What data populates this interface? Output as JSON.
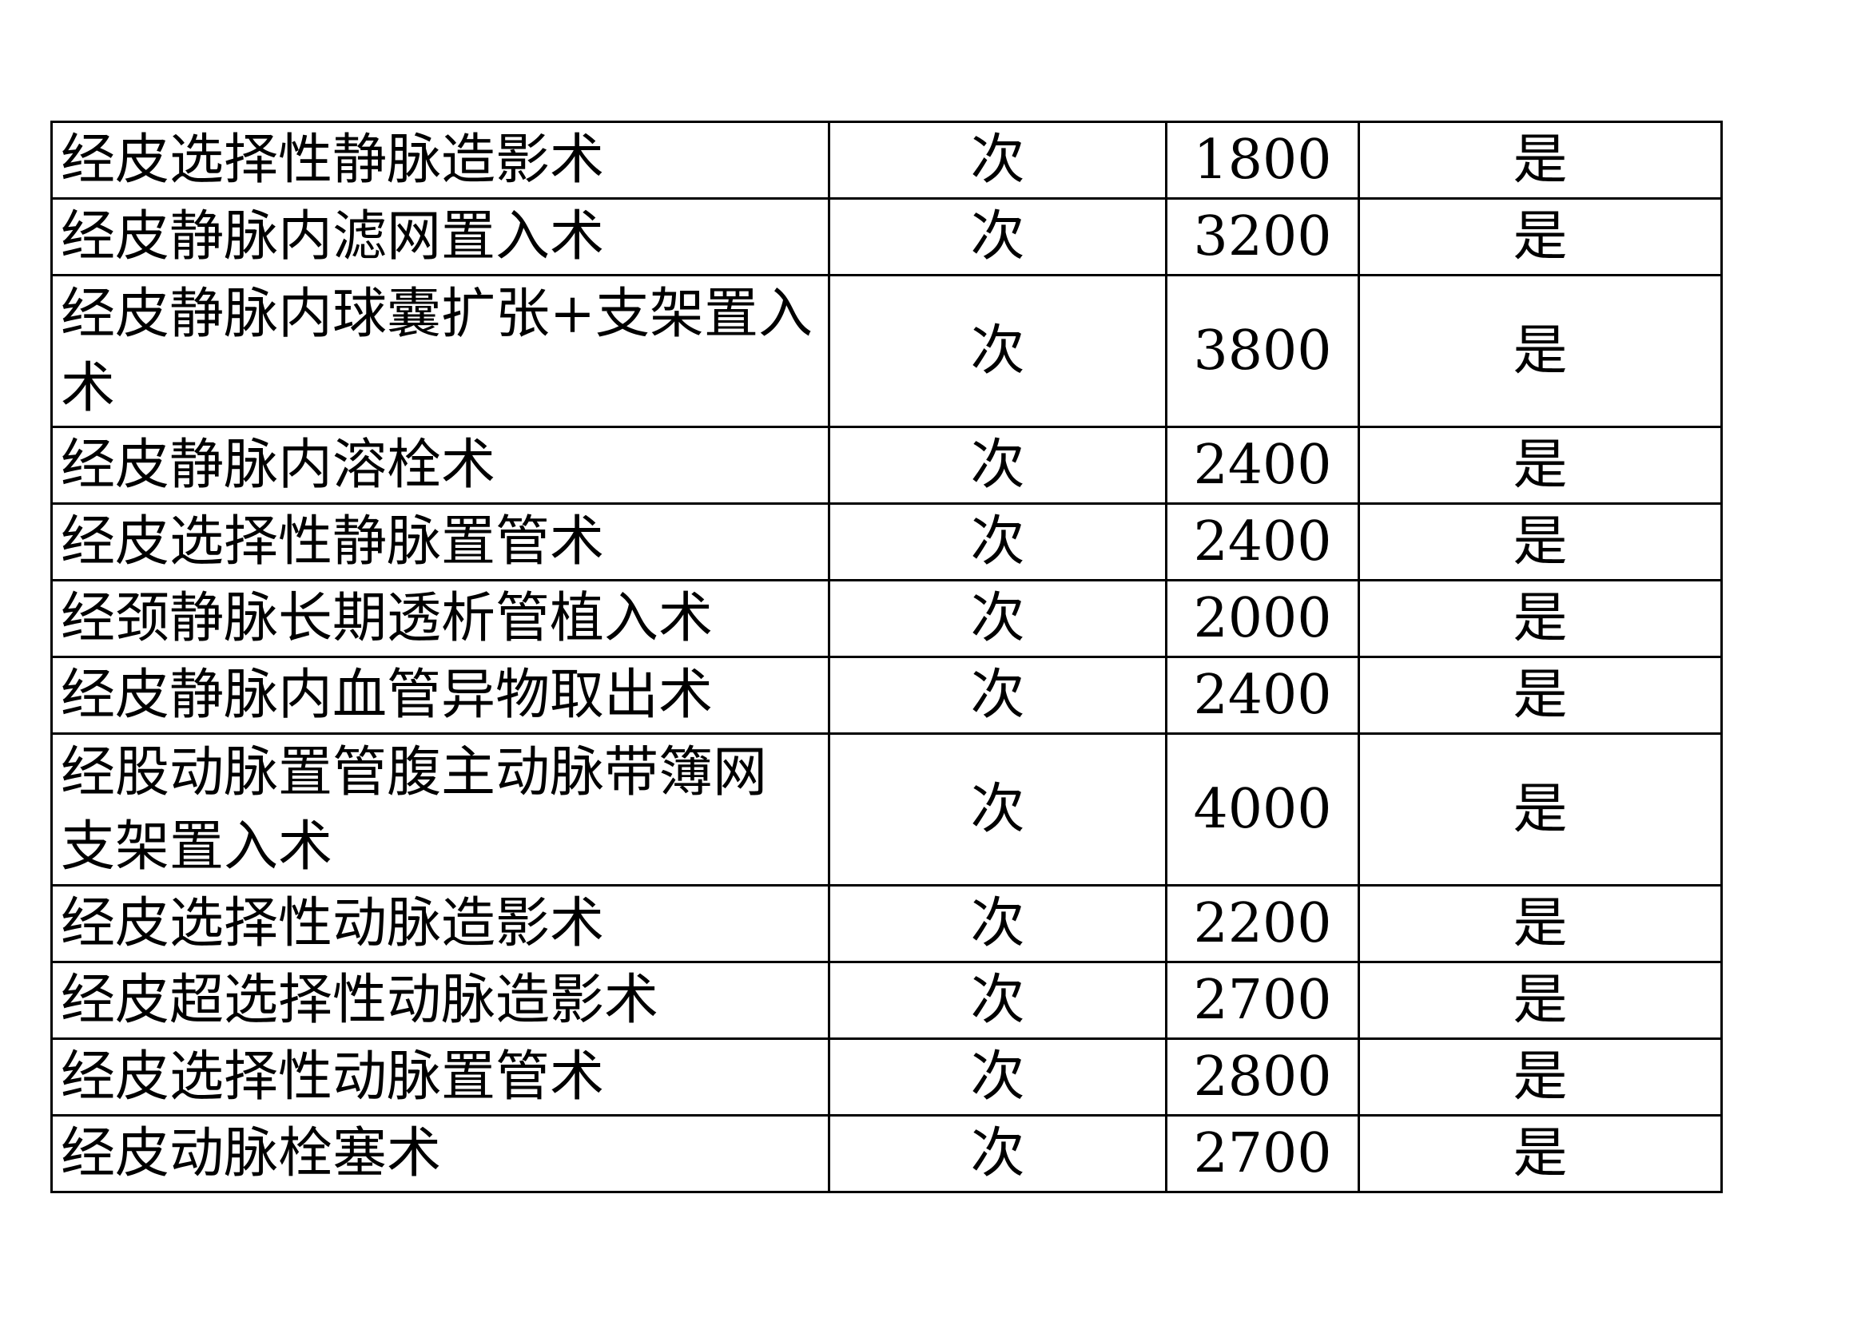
{
  "table": {
    "rows": [
      {
        "name": "经皮选择性静脉造影术",
        "unit": "次",
        "price": "1800",
        "covered": "是"
      },
      {
        "name": "经皮静脉内滤网置入术",
        "unit": "次",
        "price": "3200",
        "covered": "是"
      },
      {
        "name": "经皮静脉内球囊扩张+支架置入术",
        "unit": "次",
        "price": "3800",
        "covered": "是"
      },
      {
        "name": "经皮静脉内溶栓术",
        "unit": "次",
        "price": "2400",
        "covered": "是"
      },
      {
        "name": "经皮选择性静脉置管术",
        "unit": "次",
        "price": "2400",
        "covered": "是"
      },
      {
        "name": "经颈静脉长期透析管植入术",
        "unit": "次",
        "price": "2000",
        "covered": "是"
      },
      {
        "name": "经皮静脉内血管异物取出术",
        "unit": "次",
        "price": "2400",
        "covered": "是"
      },
      {
        "name": "经股动脉置管腹主动脉带簿网支架置入术",
        "unit": "次",
        "price": "4000",
        "covered": "是"
      },
      {
        "name": "经皮选择性动脉造影术",
        "unit": "次",
        "price": "2200",
        "covered": "是"
      },
      {
        "name": "经皮超选择性动脉造影术",
        "unit": "次",
        "price": "2700",
        "covered": "是"
      },
      {
        "name": "经皮选择性动脉置管术",
        "unit": "次",
        "price": "2800",
        "covered": "是"
      },
      {
        "name": "经皮动脉栓塞术",
        "unit": "次",
        "price": "2700",
        "covered": "是"
      }
    ]
  }
}
